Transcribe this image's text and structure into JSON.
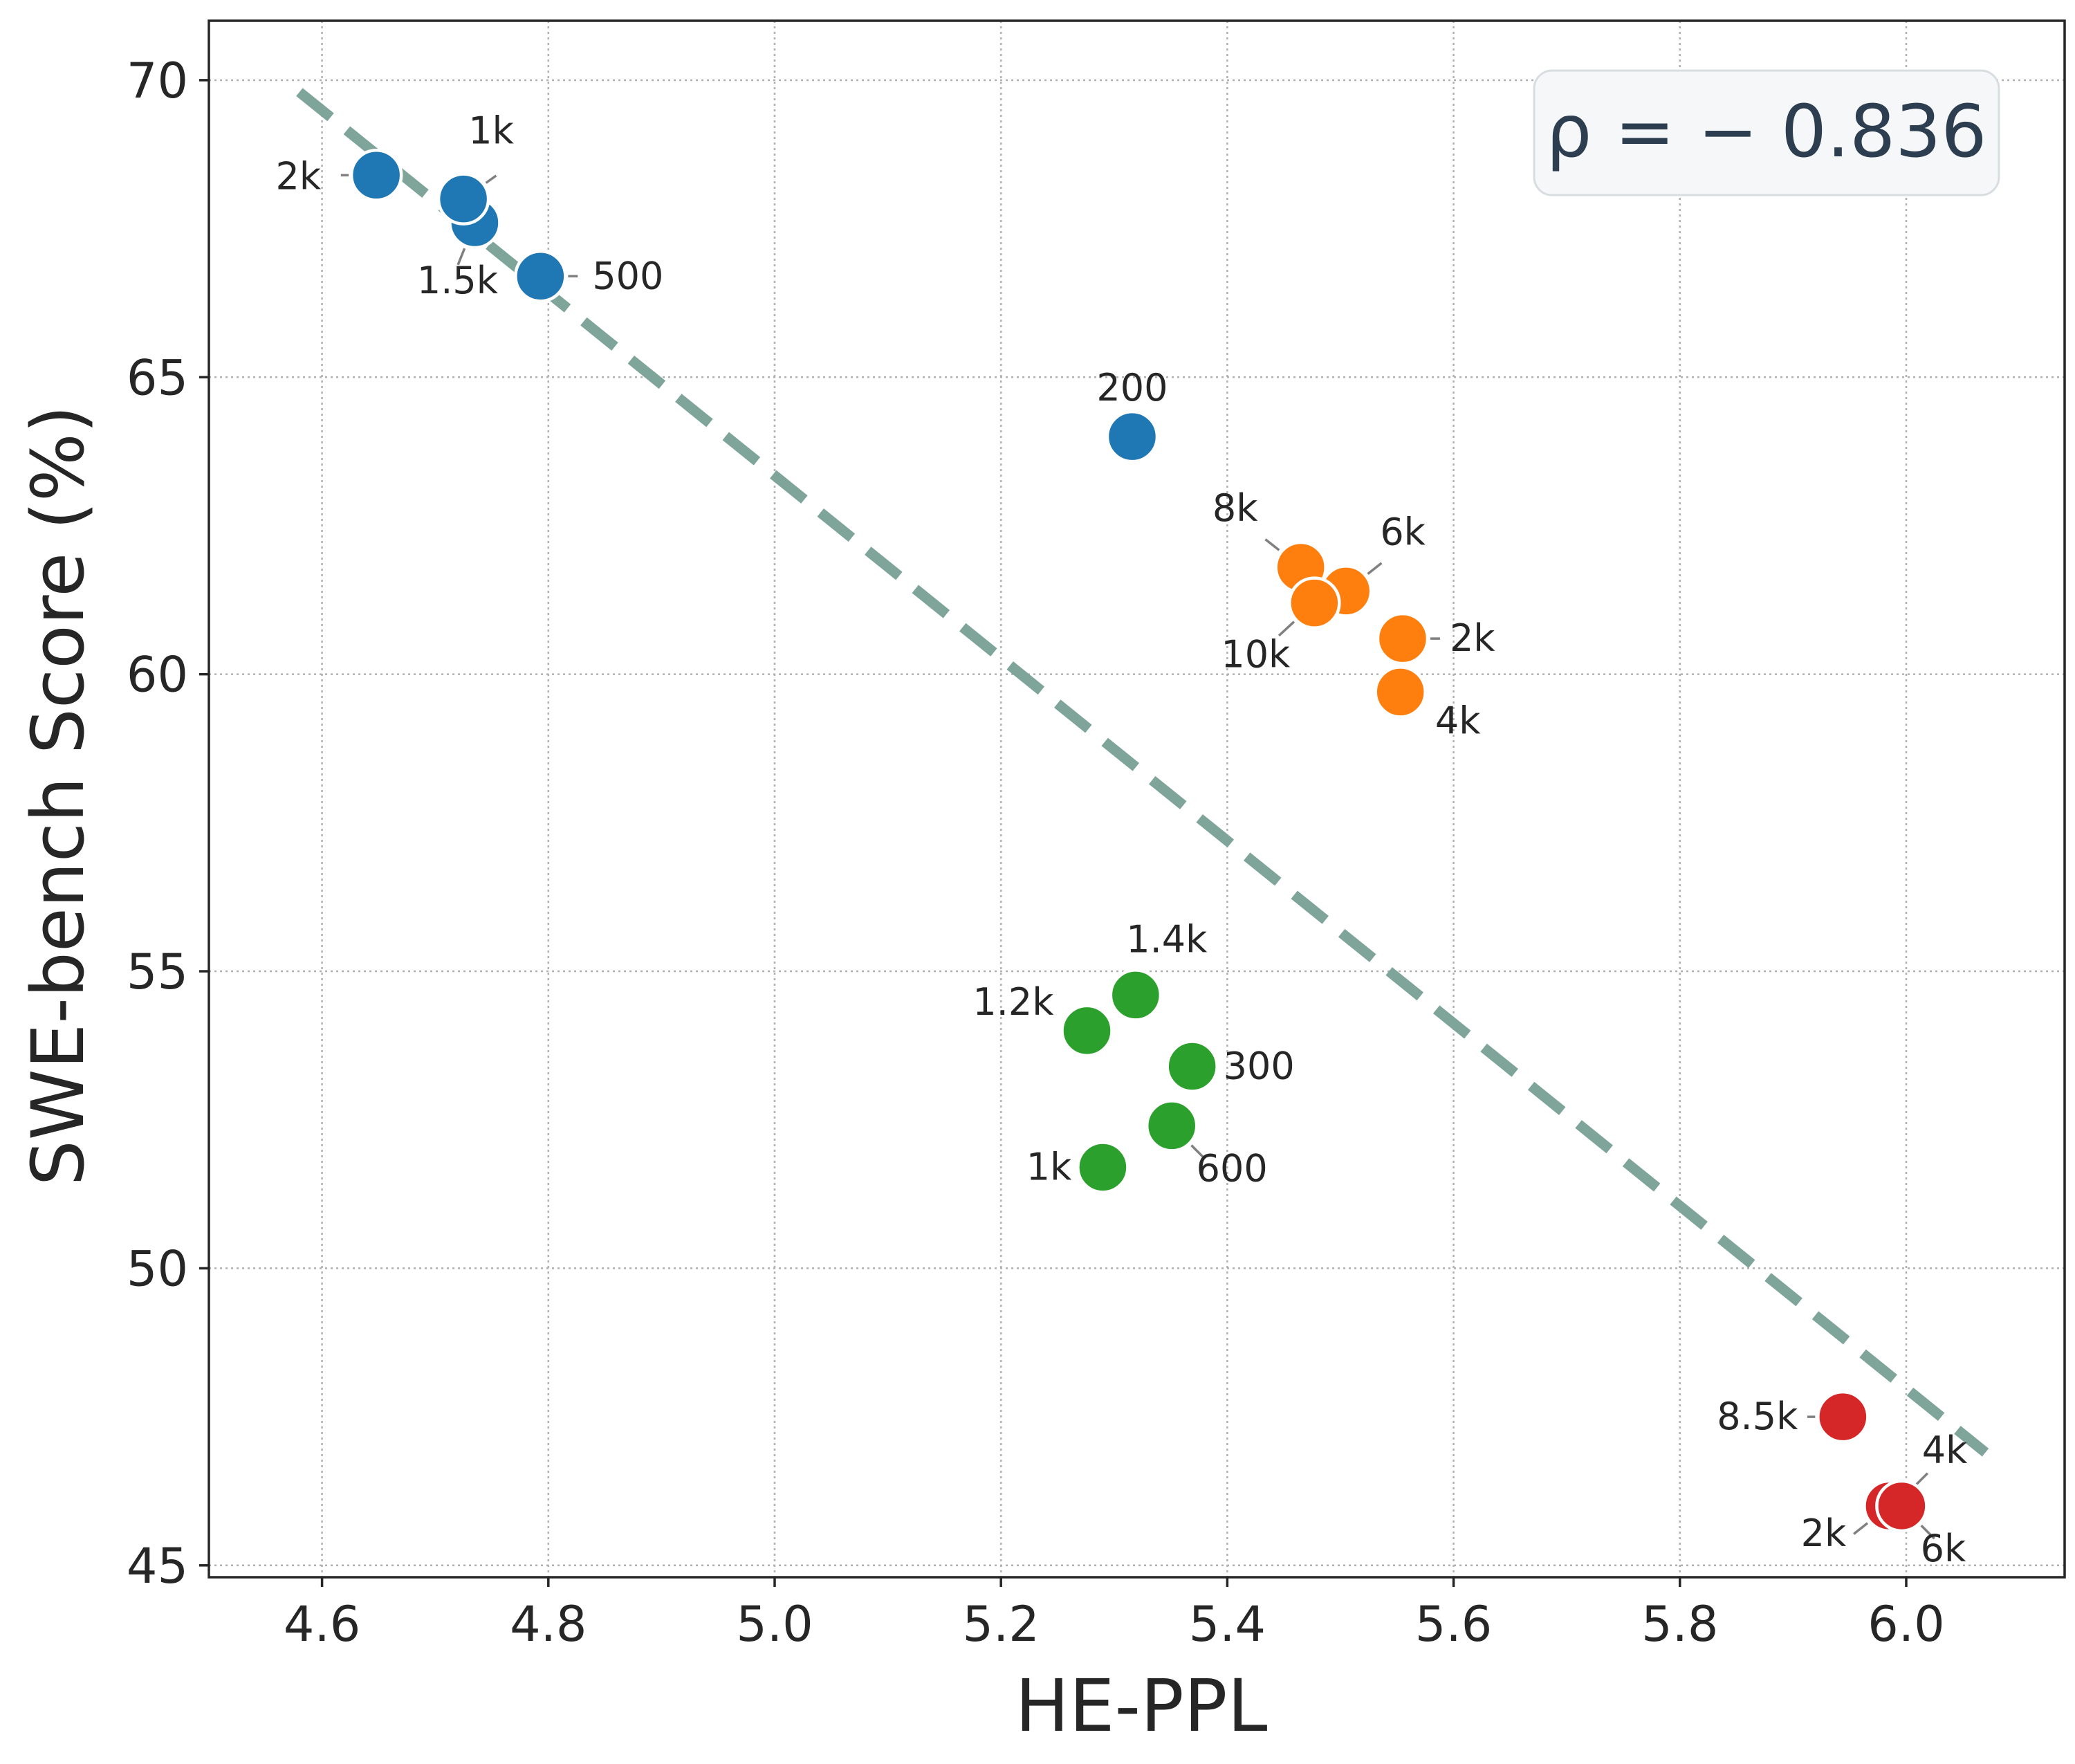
{
  "chart_data": {
    "type": "scatter",
    "title": "",
    "xlabel": "HE-PPL",
    "ylabel": "SWE-bench Score (%)",
    "xlim": [
      4.5,
      6.14
    ],
    "ylim": [
      44.8,
      71
    ],
    "xticks": [
      4.6,
      4.8,
      5.0,
      5.2,
      5.4,
      5.6,
      5.8,
      6.0
    ],
    "xtick_labels": [
      "4.6",
      "4.8",
      "5.0",
      "5.2",
      "5.4",
      "5.6",
      "5.8",
      "6.0"
    ],
    "yticks": [
      45,
      50,
      55,
      60,
      65,
      70
    ],
    "ytick_labels": [
      "45",
      "50",
      "55",
      "60",
      "65",
      "70"
    ],
    "grid": true,
    "annotation": "ρ = − 0.836",
    "annotation_placement": "top-right",
    "trend_line": {
      "style": "dashed",
      "color": "#7fa59a",
      "x": [
        4.58,
        6.07
      ],
      "y": [
        69.8,
        46.9
      ]
    },
    "series": [
      {
        "name": "blue",
        "color": "#1f77b4",
        "points": [
          {
            "x": 4.648,
            "y": 68.4,
            "label": "2k"
          },
          {
            "x": 4.735,
            "y": 67.6,
            "label": "1.5k"
          },
          {
            "x": 4.725,
            "y": 68.0,
            "label": "1k"
          },
          {
            "x": 4.793,
            "y": 66.7,
            "label": "500"
          },
          {
            "x": 5.316,
            "y": 64.0,
            "label": "200"
          }
        ]
      },
      {
        "name": "orange",
        "color": "#ff7f0e",
        "points": [
          {
            "x": 5.465,
            "y": 61.8,
            "label": "8k"
          },
          {
            "x": 5.505,
            "y": 61.4,
            "label": "6k"
          },
          {
            "x": 5.477,
            "y": 61.2,
            "label": "10k"
          },
          {
            "x": 5.555,
            "y": 60.6,
            "label": "2k"
          },
          {
            "x": 5.553,
            "y": 59.7,
            "label": "4k"
          }
        ]
      },
      {
        "name": "green",
        "color": "#2ca02c",
        "points": [
          {
            "x": 5.319,
            "y": 54.6,
            "label": "1.4k"
          },
          {
            "x": 5.276,
            "y": 54.0,
            "label": "1.2k"
          },
          {
            "x": 5.369,
            "y": 53.4,
            "label": "300"
          },
          {
            "x": 5.351,
            "y": 52.4,
            "label": "600"
          },
          {
            "x": 5.29,
            "y": 51.7,
            "label": "1k"
          }
        ]
      },
      {
        "name": "red",
        "color": "#d62728",
        "points": [
          {
            "x": 5.944,
            "y": 47.5,
            "label": "8.5k"
          },
          {
            "x": 5.99,
            "y": 46.0,
            "label": "4k"
          },
          {
            "x": 5.985,
            "y": 46.0,
            "label": "2k"
          },
          {
            "x": 5.996,
            "y": 46.0,
            "label": "6k"
          }
        ]
      }
    ]
  }
}
